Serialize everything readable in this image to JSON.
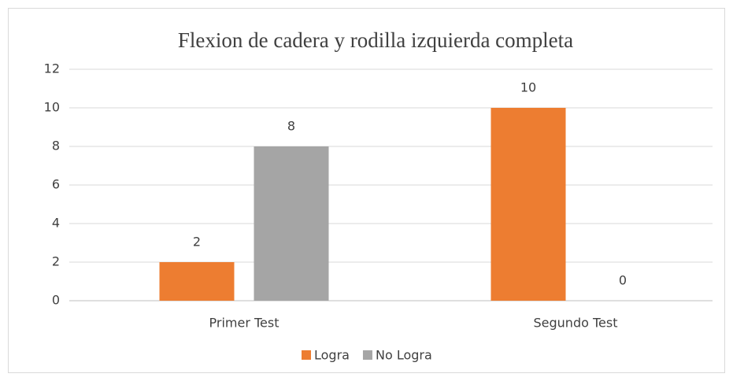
{
  "chart_data": {
    "type": "bar",
    "title": "Flexion de cadera y rodilla izquierda completa",
    "categories": [
      "Primer Test",
      "Segundo Test"
    ],
    "series": [
      {
        "name": "Logra",
        "color": "#ed7d31",
        "values": [
          2,
          10
        ]
      },
      {
        "name": "No Logra",
        "color": "#a5a5a5",
        "values": [
          8,
          0
        ]
      }
    ],
    "ylim": [
      0,
      12
    ],
    "yticks": [
      0,
      2,
      4,
      6,
      8,
      10,
      12
    ],
    "grid": true,
    "legend": "bottom"
  }
}
